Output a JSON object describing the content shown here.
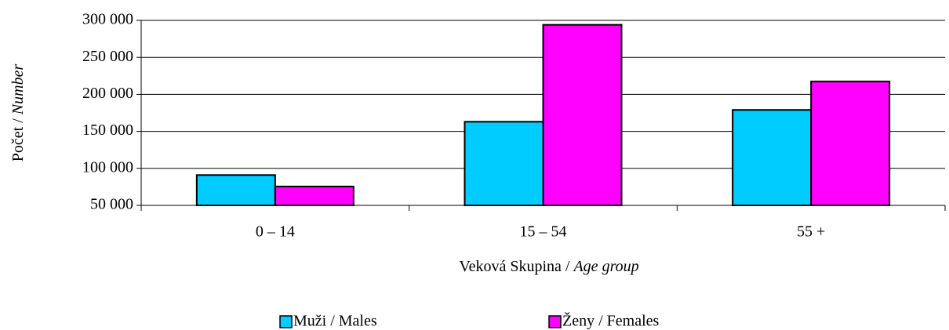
{
  "chart_data": {
    "type": "bar",
    "y_label_parts": [
      "Počet / ",
      "Number"
    ],
    "x_label_parts": [
      "Veková Skupina / ",
      "Age group"
    ],
    "categories": [
      "0 – 14",
      "15 – 54",
      "55 +"
    ],
    "series": [
      {
        "name": "Muži / Males",
        "color": "#00ccff",
        "values": [
          91000,
          163000,
          179000
        ]
      },
      {
        "name": "Ženy / Females",
        "color": "#ff00ff",
        "values": [
          75500,
          294000,
          217500
        ]
      }
    ],
    "ylim": [
      50000,
      300000
    ],
    "yticks": [
      {
        "value": 50000,
        "label": "50 000"
      },
      {
        "value": 100000,
        "label": "100 000"
      },
      {
        "value": 150000,
        "label": "150 000"
      },
      {
        "value": 200000,
        "label": "200 000"
      },
      {
        "value": 250000,
        "label": "250 000"
      },
      {
        "value": 300000,
        "label": "300 000"
      }
    ],
    "grid": true,
    "legend": "bottom"
  }
}
